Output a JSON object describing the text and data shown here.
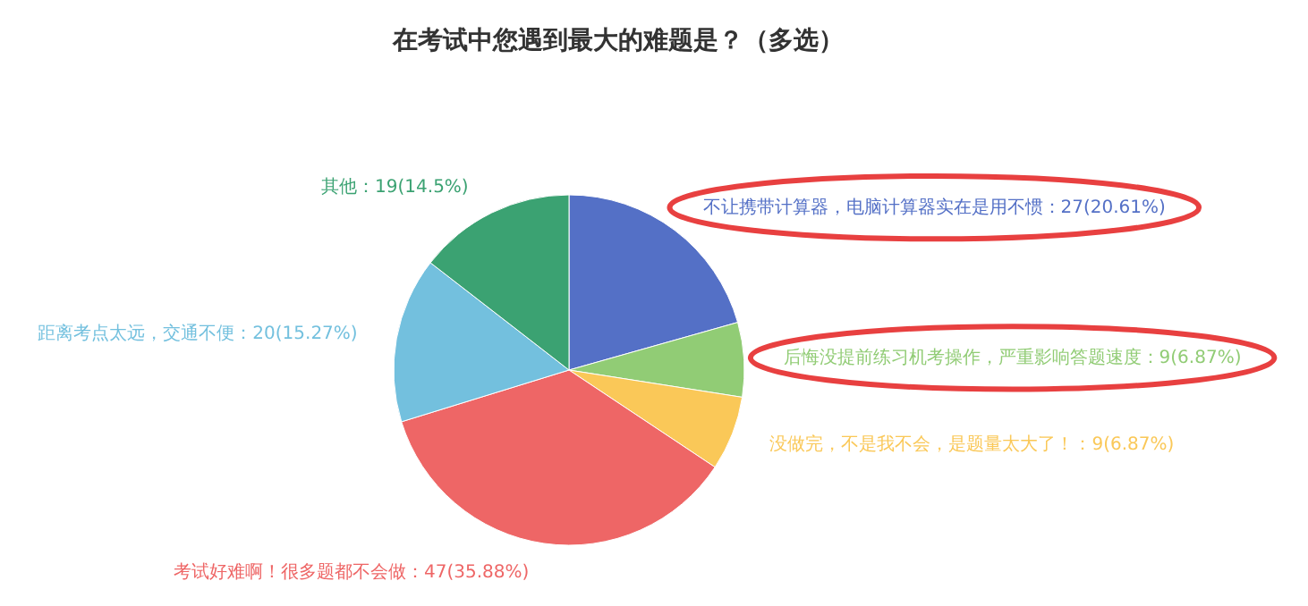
{
  "chart_data": {
    "type": "pie",
    "title": "在考试中您遇到最大的难题是？（多选）",
    "categories": [
      "不让携带计算器，电脑计算器实在是用不惯",
      "后悔没提前练习机考操作，严重影响答题速度",
      "没做完，不是我不会，是题量太大了！",
      "考试好难啊！很多题都不会做",
      "距离考点太远，交通不便",
      "其他"
    ],
    "values": [
      27,
      9,
      9,
      47,
      20,
      19
    ],
    "colors": [
      "#5470c6",
      "#91cc75",
      "#fac858",
      "#ee6666",
      "#73c0de",
      "#3ba272"
    ],
    "value_labels": [
      "：27(20.61%)",
      "：9(6.87%)",
      "：9(6.87%)",
      "：47(35.88%)",
      "：20(15.27%)",
      "：19(14.5%)"
    ]
  }
}
